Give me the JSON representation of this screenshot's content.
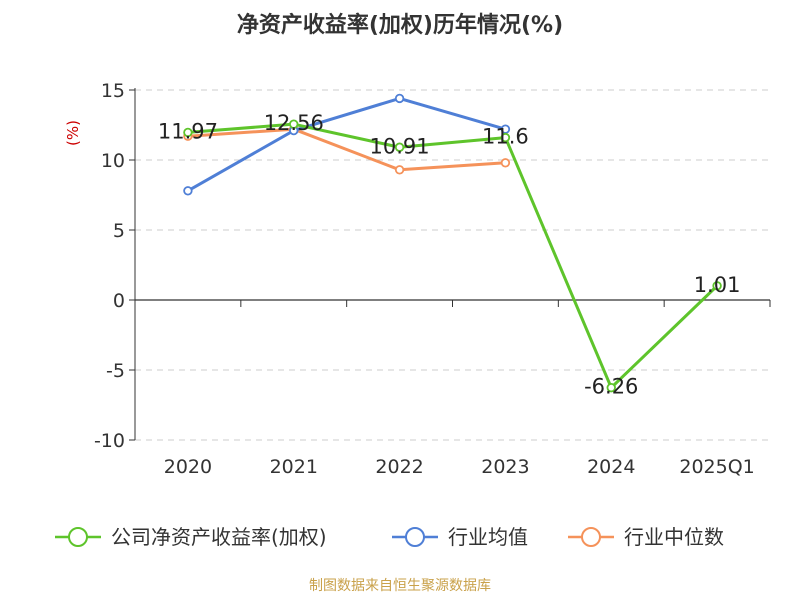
{
  "chart_data": {
    "type": "line",
    "title": "净资产收益率(加权)历年情况(%)",
    "ylabel": "(%)",
    "categories": [
      "2020",
      "2021",
      "2022",
      "2023",
      "2024",
      "2025Q1"
    ],
    "ylim": [
      -10,
      15
    ],
    "yticks": [
      15,
      10,
      5,
      0,
      -5,
      -10
    ],
    "grid": true,
    "legend_position": "bottom",
    "series": [
      {
        "name": "公司净资产收益率(加权)",
        "color": "#5ec42b",
        "values": [
          11.97,
          12.56,
          10.91,
          11.6,
          -6.26,
          1.01
        ],
        "labels": [
          "11.97",
          "12.56",
          "10.91",
          "11.6",
          "-6.26",
          "1.01"
        ]
      },
      {
        "name": "行业均值",
        "color": "#4f7fd6",
        "values": [
          7.8,
          12.1,
          14.4,
          12.2,
          null,
          null
        ]
      },
      {
        "name": "行业中位数",
        "color": "#f5925a",
        "values": [
          11.7,
          12.2,
          9.3,
          9.8,
          null,
          null
        ]
      }
    ],
    "source": "制图数据来自恒生聚源数据库",
    "colors": {
      "axis": "#333333",
      "grid": "#cccccc",
      "ylabel": "#cc0000",
      "source": "#c9a14a",
      "text": "#333333"
    }
  }
}
